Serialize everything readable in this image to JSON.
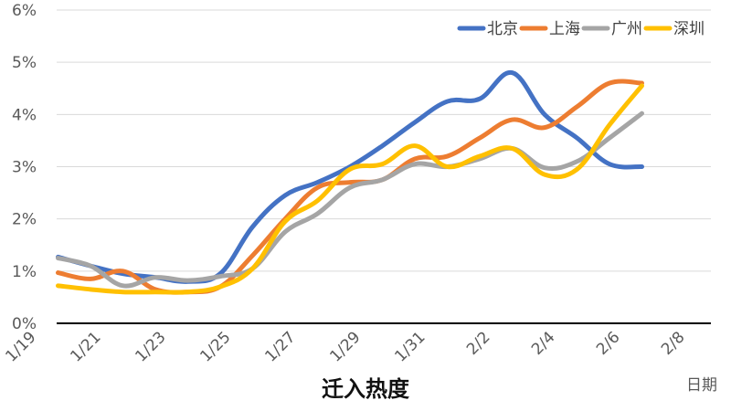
{
  "chart_data": {
    "type": "line",
    "title": "迁入热度",
    "xlabel": "日期",
    "ylabel": "",
    "ylim": [
      0,
      6
    ],
    "yticks": [
      "0%",
      "1%",
      "2%",
      "3%",
      "4%",
      "5%",
      "6%"
    ],
    "xticks": [
      "1/19",
      "1/21",
      "1/23",
      "1/25",
      "1/27",
      "1/29",
      "1/31",
      "2/2",
      "2/4",
      "2/6",
      "2/8"
    ],
    "x": [
      "1/20",
      "1/21",
      "1/22",
      "1/23",
      "1/24",
      "1/25",
      "1/26",
      "1/27",
      "1/28",
      "1/29",
      "1/30",
      "1/31",
      "2/1",
      "2/2",
      "2/3",
      "2/4",
      "2/5",
      "2/6",
      "2/7"
    ],
    "grid": true,
    "legend_position": "top-right",
    "series": [
      {
        "name": "北京",
        "color": "#4472C4",
        "values": [
          1.27,
          1.1,
          0.95,
          0.88,
          0.8,
          0.95,
          1.85,
          2.45,
          2.7,
          3.0,
          3.4,
          3.85,
          4.25,
          4.3,
          4.8,
          4.0,
          3.55,
          3.05,
          3.0
        ]
      },
      {
        "name": "上海",
        "color": "#ED7D31",
        "values": [
          0.97,
          0.85,
          1.0,
          0.65,
          0.6,
          0.7,
          1.3,
          2.0,
          2.6,
          2.7,
          2.75,
          3.15,
          3.2,
          3.55,
          3.9,
          3.75,
          4.15,
          4.6,
          4.6
        ]
      },
      {
        "name": "广州",
        "color": "#A5A5A5",
        "values": [
          1.25,
          1.1,
          0.72,
          0.88,
          0.82,
          0.9,
          1.05,
          1.75,
          2.1,
          2.6,
          2.75,
          3.05,
          3.0,
          3.15,
          3.35,
          2.98,
          3.1,
          3.55,
          4.02
        ]
      },
      {
        "name": "深圳",
        "color": "#FFC000",
        "values": [
          0.72,
          0.65,
          0.6,
          0.6,
          0.6,
          0.7,
          1.05,
          1.95,
          2.35,
          2.95,
          3.05,
          3.4,
          3.0,
          3.2,
          3.35,
          2.85,
          2.95,
          3.8,
          4.55
        ]
      }
    ]
  }
}
